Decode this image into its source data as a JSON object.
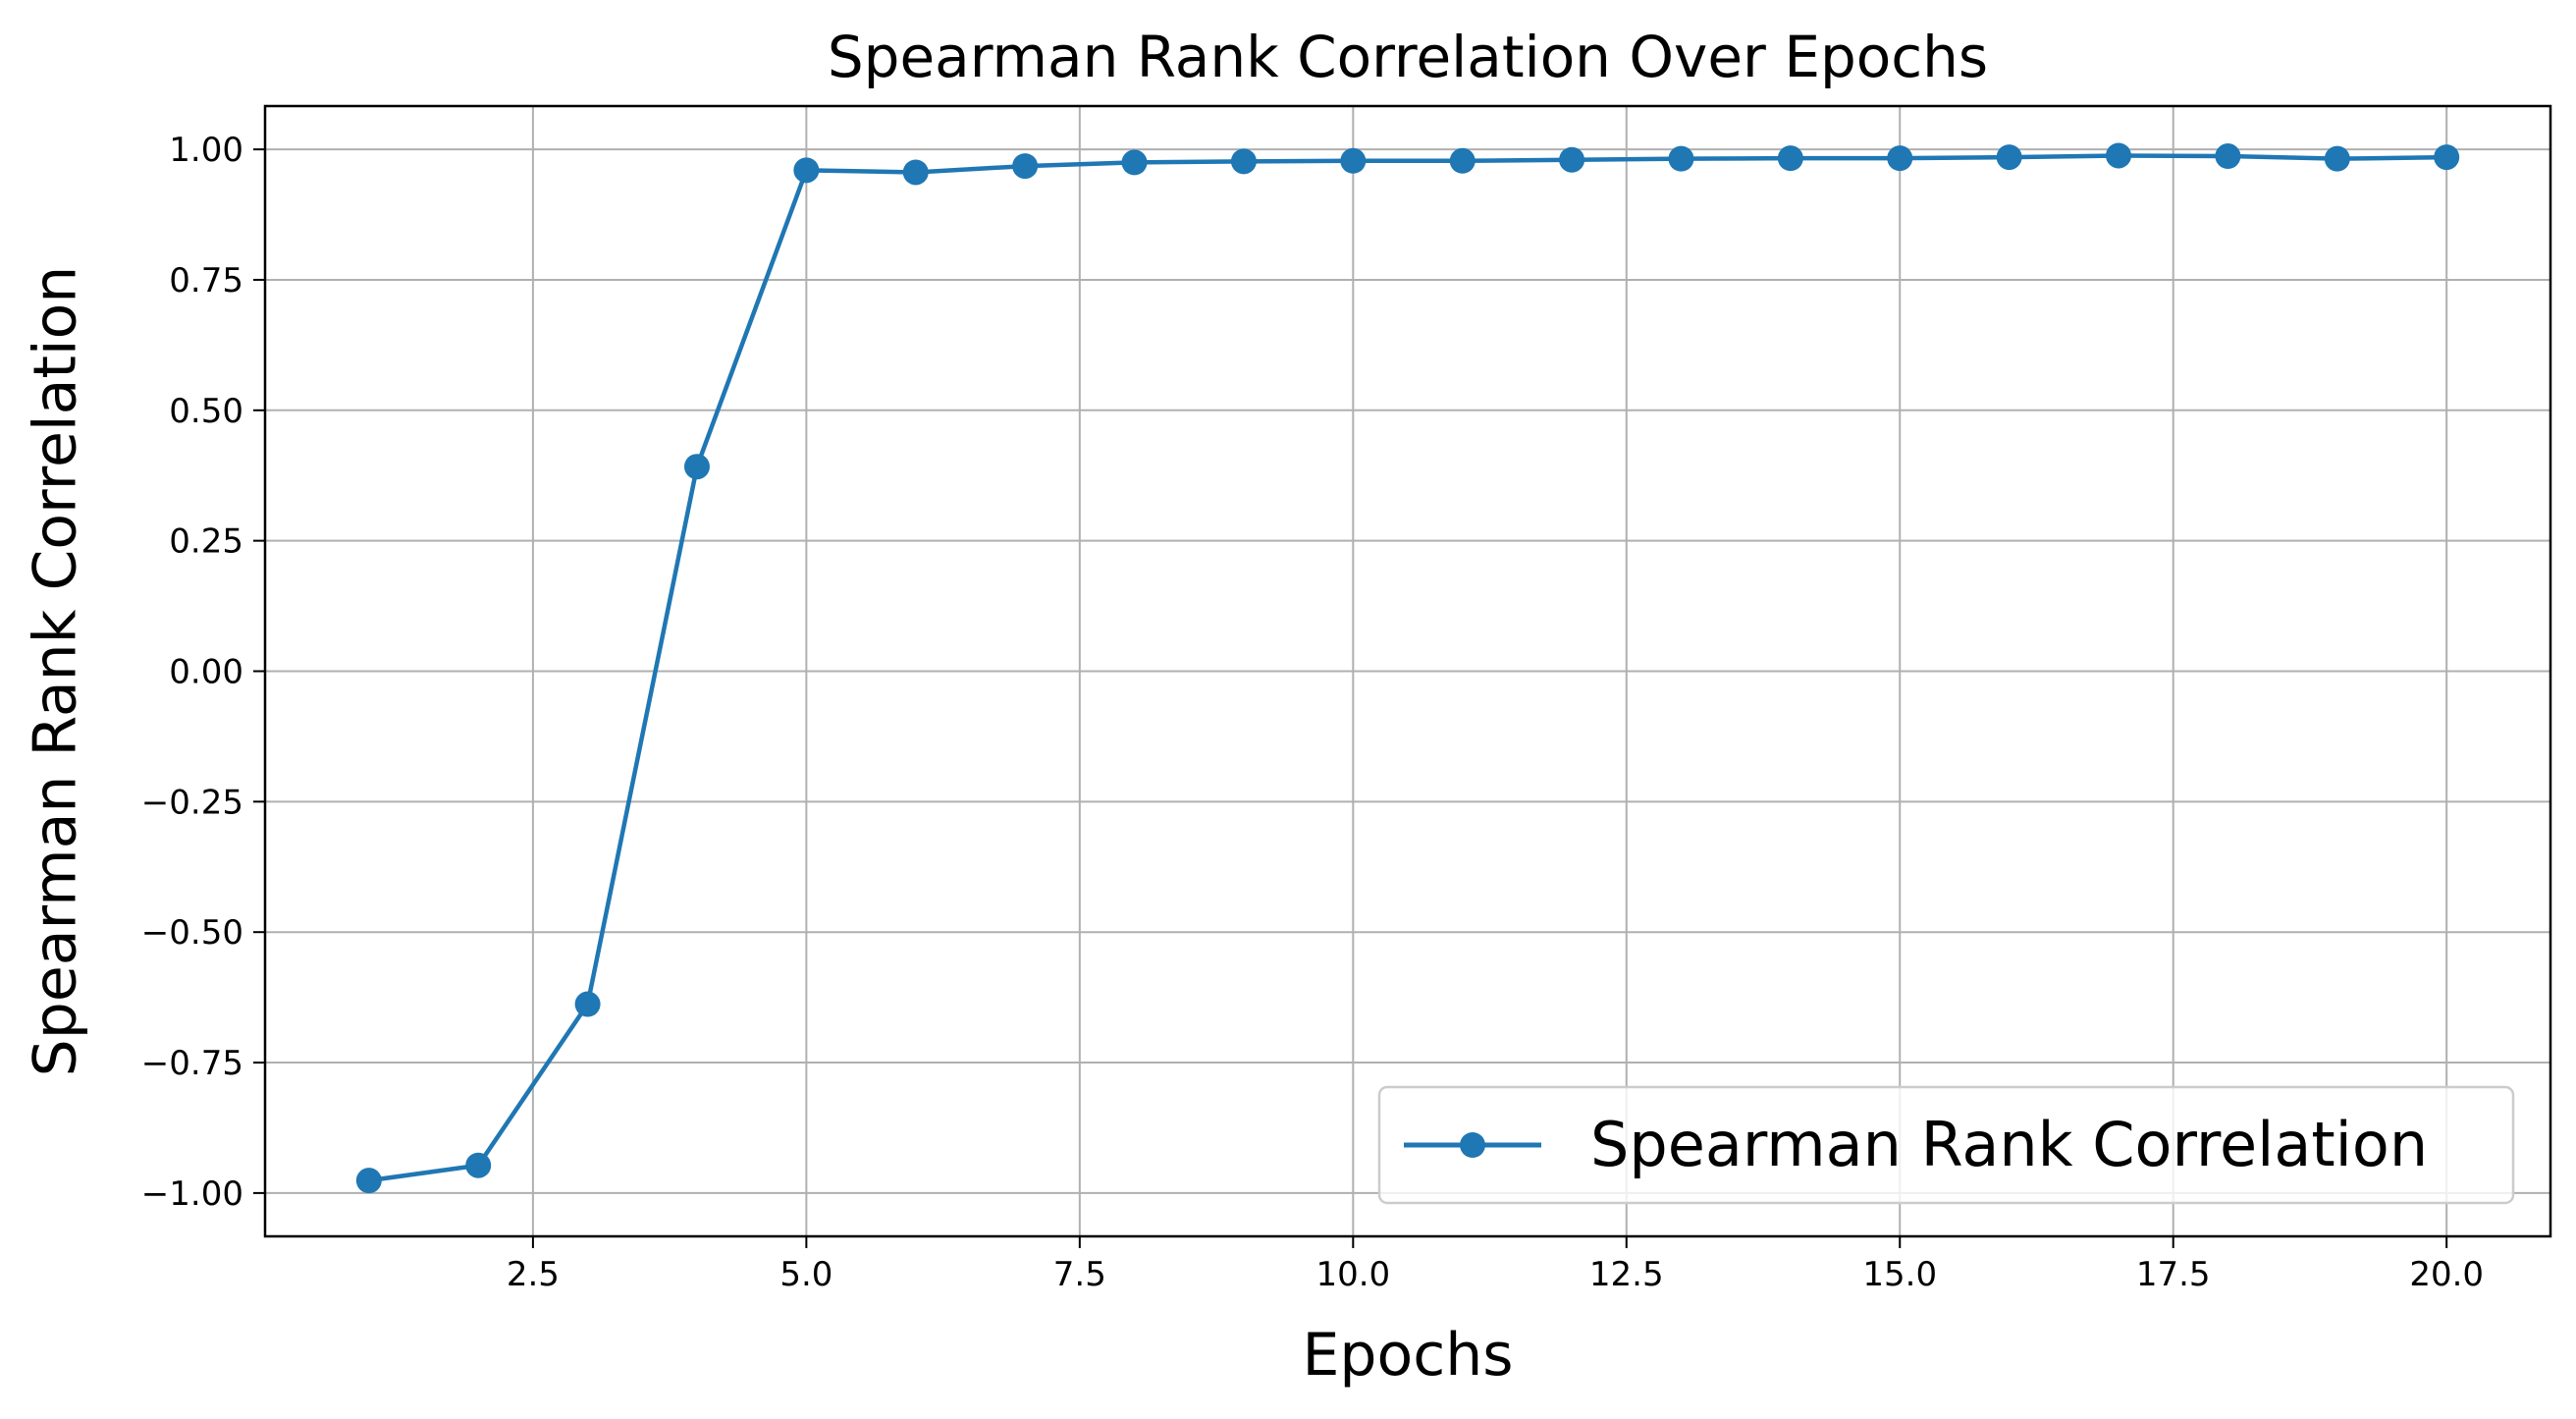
{
  "chart_data": {
    "type": "line",
    "title": "Spearman Rank Correlation Over Epochs",
    "xlabel": "Epochs",
    "ylabel": "Spearman Rank Correlation",
    "xlim": [
      0.05,
      20.95
    ],
    "ylim": [
      -1.083,
      1.083
    ],
    "x_ticks": [
      2.5,
      5.0,
      7.5,
      10.0,
      12.5,
      15.0,
      17.5,
      20.0
    ],
    "x_tick_labels": [
      "2.5",
      "5.0",
      "7.5",
      "10.0",
      "12.5",
      "15.0",
      "17.5",
      "20.0"
    ],
    "y_ticks": [
      -1.0,
      -0.75,
      -0.5,
      -0.25,
      0.0,
      0.25,
      0.5,
      0.75,
      1.0
    ],
    "y_tick_labels": [
      "−1.00",
      "−0.75",
      "−0.50",
      "−0.25",
      "0.00",
      "0.25",
      "0.50",
      "0.75",
      "1.00"
    ],
    "grid": true,
    "legend_position": "lower-right",
    "x": [
      1,
      2,
      3,
      4,
      5,
      6,
      7,
      8,
      9,
      10,
      11,
      12,
      13,
      14,
      15,
      16,
      17,
      18,
      19,
      20
    ],
    "series": [
      {
        "name": "Spearman Rank Correlation",
        "color": "#1f77b4",
        "marker": "circle",
        "values": [
          -0.976,
          -0.947,
          -0.638,
          0.392,
          0.96,
          0.956,
          0.968,
          0.975,
          0.977,
          0.978,
          0.978,
          0.98,
          0.982,
          0.983,
          0.983,
          0.985,
          0.988,
          0.987,
          0.982,
          0.985
        ]
      }
    ]
  }
}
